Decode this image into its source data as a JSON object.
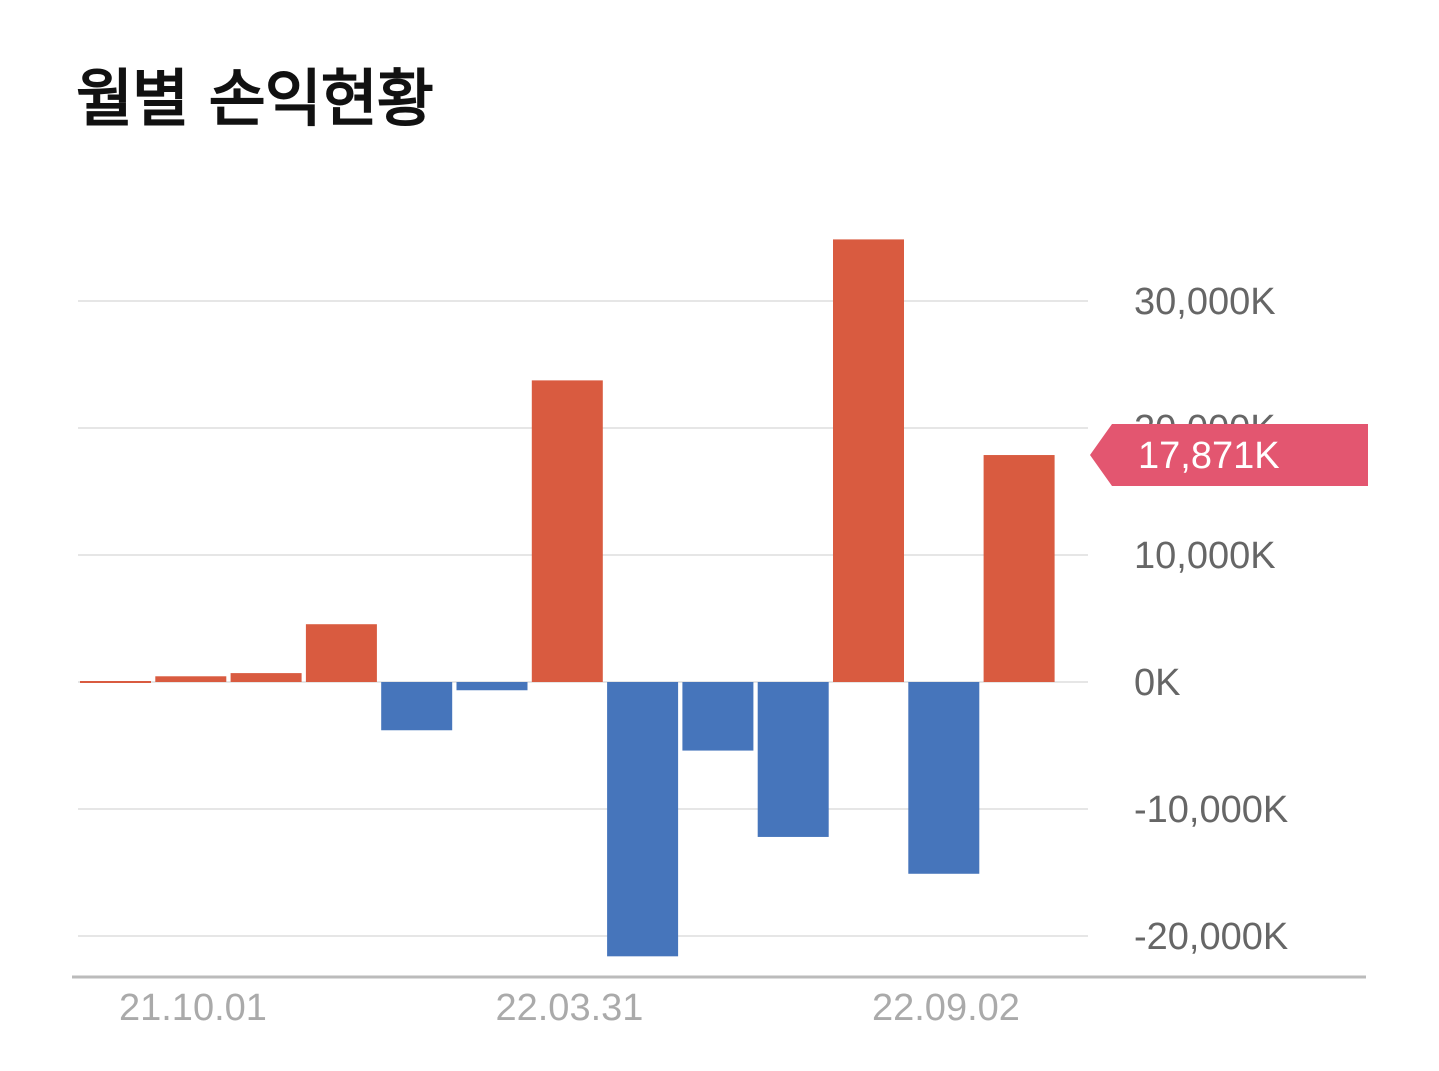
{
  "title": "월별 손익현황",
  "chart_data": {
    "type": "bar",
    "title": "월별 손익현황",
    "xlabel": "",
    "ylabel": "",
    "ylim": [
      -21800,
      35000
    ],
    "yticks": [
      30000,
      20000,
      10000,
      0,
      -10000,
      -20000
    ],
    "ytick_labels": [
      "30,000K",
      "20,000K",
      "10,000K",
      "0K",
      "-10,000K",
      "-20,000K"
    ],
    "x_tick_labels": [
      {
        "index": 1.5,
        "label": "21.10.01"
      },
      {
        "index": 6.5,
        "label": "22.03.31"
      },
      {
        "index": 11.5,
        "label": "22.09.02"
      }
    ],
    "values": [
      100,
      450,
      700,
      4550,
      -3800,
      -650,
      23750,
      -21600,
      -5400,
      -12200,
      34850,
      -15100,
      17871
    ],
    "colors": {
      "positive": "#d95b40",
      "negative": "#4675bb"
    },
    "callout": {
      "value": 17871,
      "label": "17,871K",
      "color": "#e35670"
    },
    "grid": true
  }
}
